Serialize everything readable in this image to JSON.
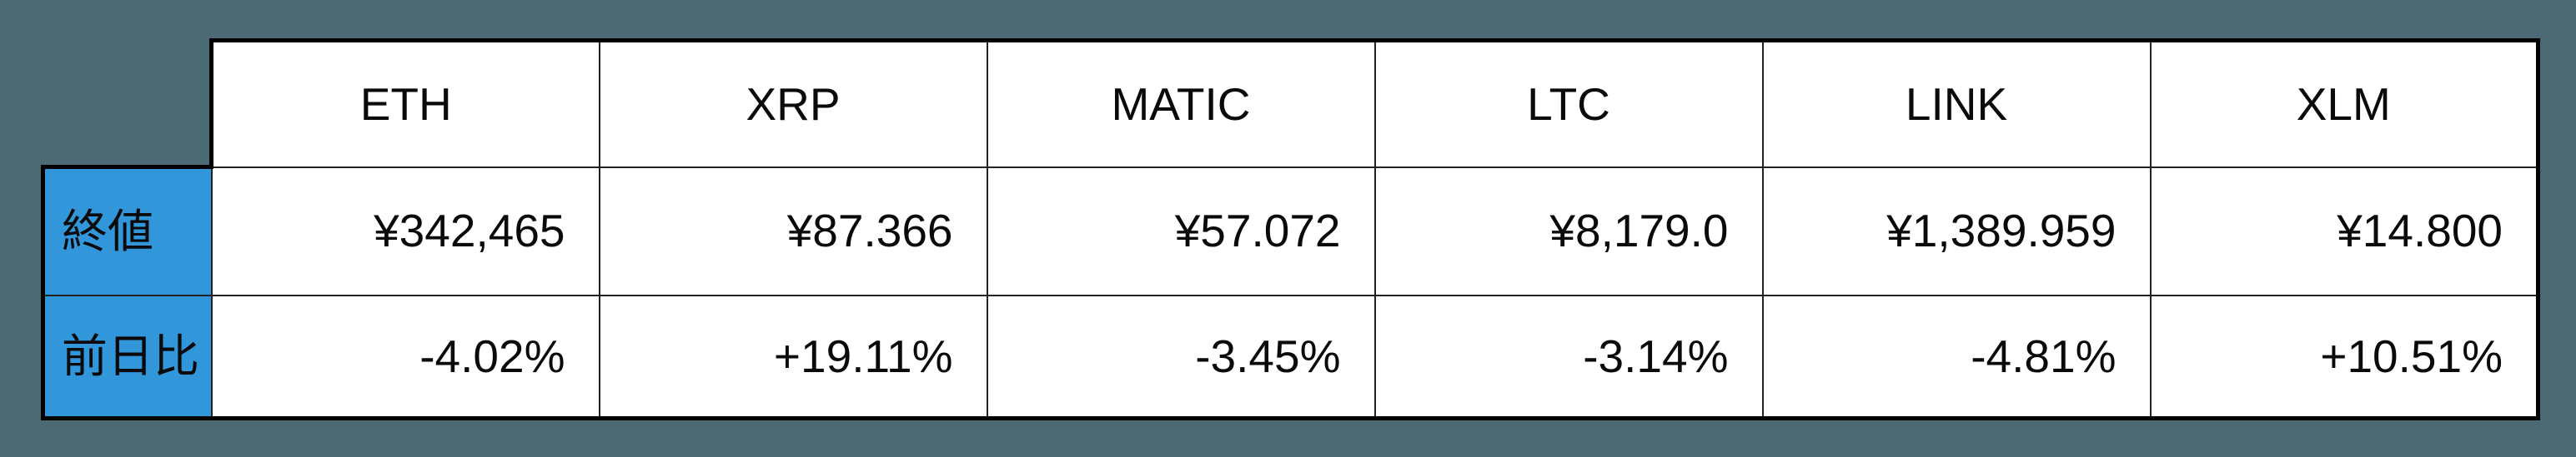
{
  "colors": {
    "page_background": "#4c6a74",
    "row_header_background": "#3297da",
    "cell_background": "#ffffff",
    "border": "#000000",
    "text": "#0a0a0a"
  },
  "chart_data": {
    "type": "table",
    "categories": [
      "ETH",
      "XRP",
      "MATIC",
      "LTC",
      "LINK",
      "XLM"
    ],
    "series": [
      {
        "name": "終値",
        "values": [
          "¥342,465",
          "¥87.366",
          "¥57.072",
          "¥8,179.0",
          "¥1,389.959",
          "¥14.800"
        ]
      },
      {
        "name": "前日比",
        "values": [
          "-4.02%",
          "+19.11%",
          "-3.45%",
          "-3.14%",
          "-4.81%",
          "+10.51%"
        ]
      }
    ],
    "layout": {
      "row_header_column": "left",
      "grid": "on",
      "value_alignment": "right",
      "header_alignment": "center"
    }
  }
}
